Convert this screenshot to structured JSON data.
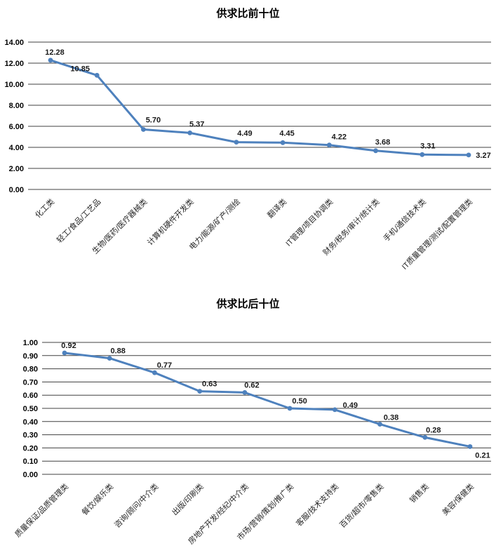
{
  "page": {
    "background_color": "#ffffff",
    "text_color": "#000000"
  },
  "chart_data": [
    {
      "type": "line",
      "title": "供求比前十位",
      "categories": [
        "化工类",
        "轻工/食品/工艺品",
        "生物/医药/医疗器械类",
        "计算机硬件开发类",
        "电力/能源/矿产/测绘",
        "翻译类",
        "IT管理/项目协调类",
        "财务/税务/审计/统计类",
        "手机/通信技术类",
        "IT质量管理/测试/配置管理类"
      ],
      "values": [
        12.28,
        10.85,
        5.7,
        5.37,
        4.49,
        4.45,
        4.22,
        3.68,
        3.31,
        3.27
      ],
      "xlabel": "",
      "ylabel": "",
      "ylim": [
        0,
        14
      ],
      "ytick_step": 2,
      "ytick_format_decimals": 2,
      "value_label_decimals": 2,
      "grid": true,
      "legend": "none",
      "series_color": "#4e81bd",
      "grid_color": "#404040"
    },
    {
      "type": "line",
      "title": "供求比后十位",
      "categories": [
        "质量保证/品质管理类",
        "餐饮/娱乐类",
        "咨询/顾问/中介类",
        "出版/印刷类",
        "房地产开发/经纪/中介类",
        "市场/营销/策划/推广类",
        "客服/技术支持类",
        "百货/超市/零售类",
        "销售类",
        "美容/保健类"
      ],
      "values": [
        0.92,
        0.88,
        0.77,
        0.63,
        0.62,
        0.5,
        0.49,
        0.38,
        0.28,
        0.21
      ],
      "xlabel": "",
      "ylabel": "",
      "ylim": [
        0,
        1
      ],
      "ytick_step": 0.1,
      "ytick_format_decimals": 2,
      "value_label_decimals": 2,
      "grid": true,
      "legend": "none",
      "series_color": "#4e81bd",
      "grid_color": "#404040"
    }
  ]
}
